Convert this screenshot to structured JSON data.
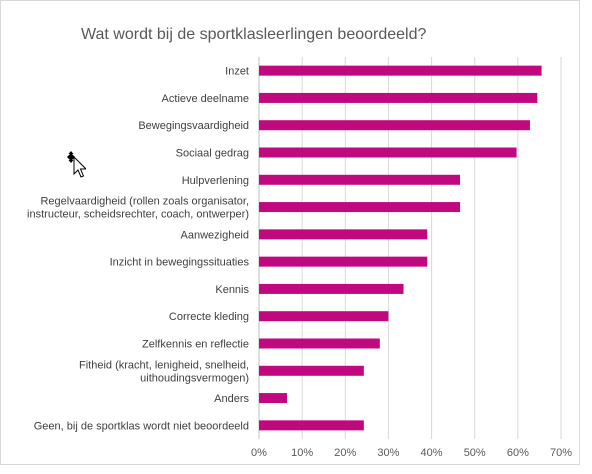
{
  "chart_data": {
    "type": "bar",
    "orientation": "horizontal",
    "title": "Wat wordt bij de sportklasleerlingen beoordeeld?",
    "color": "#c0087f",
    "categories": [
      [
        "Inzet"
      ],
      [
        "Actieve deelname"
      ],
      [
        "Bewegingsvaardigheid"
      ],
      [
        "Sociaal gedrag"
      ],
      [
        "Hulpverlening"
      ],
      [
        "Regelvaardigheid (rollen zoals organisator,",
        "instructeur, scheidsrechter, coach, ontwerper)"
      ],
      [
        "Aanwezigheid"
      ],
      [
        "Inzicht in bewegingssituaties"
      ],
      [
        "Kennis"
      ],
      [
        "Correcte kleding"
      ],
      [
        "Zelfkennis en reflectie"
      ],
      [
        "Fitheid (kracht, lenigheid, snelheid,",
        "uithoudingsvermogen)"
      ],
      [
        "Anders"
      ],
      [
        "Geen, bij de sportklas wordt niet beoordeeld"
      ]
    ],
    "values": [
      0.655,
      0.645,
      0.628,
      0.597,
      0.466,
      0.466,
      0.39,
      0.39,
      0.335,
      0.3,
      0.28,
      0.243,
      0.065,
      0.243
    ],
    "xlim": [
      0,
      0.7
    ],
    "x_ticks": [
      "0%",
      "10%",
      "20%",
      "30%",
      "40%",
      "50%",
      "60%",
      "70%"
    ],
    "gridlines": "vertical",
    "legend": "none"
  },
  "icons": {
    "cursor": "move-cursor-icon"
  }
}
